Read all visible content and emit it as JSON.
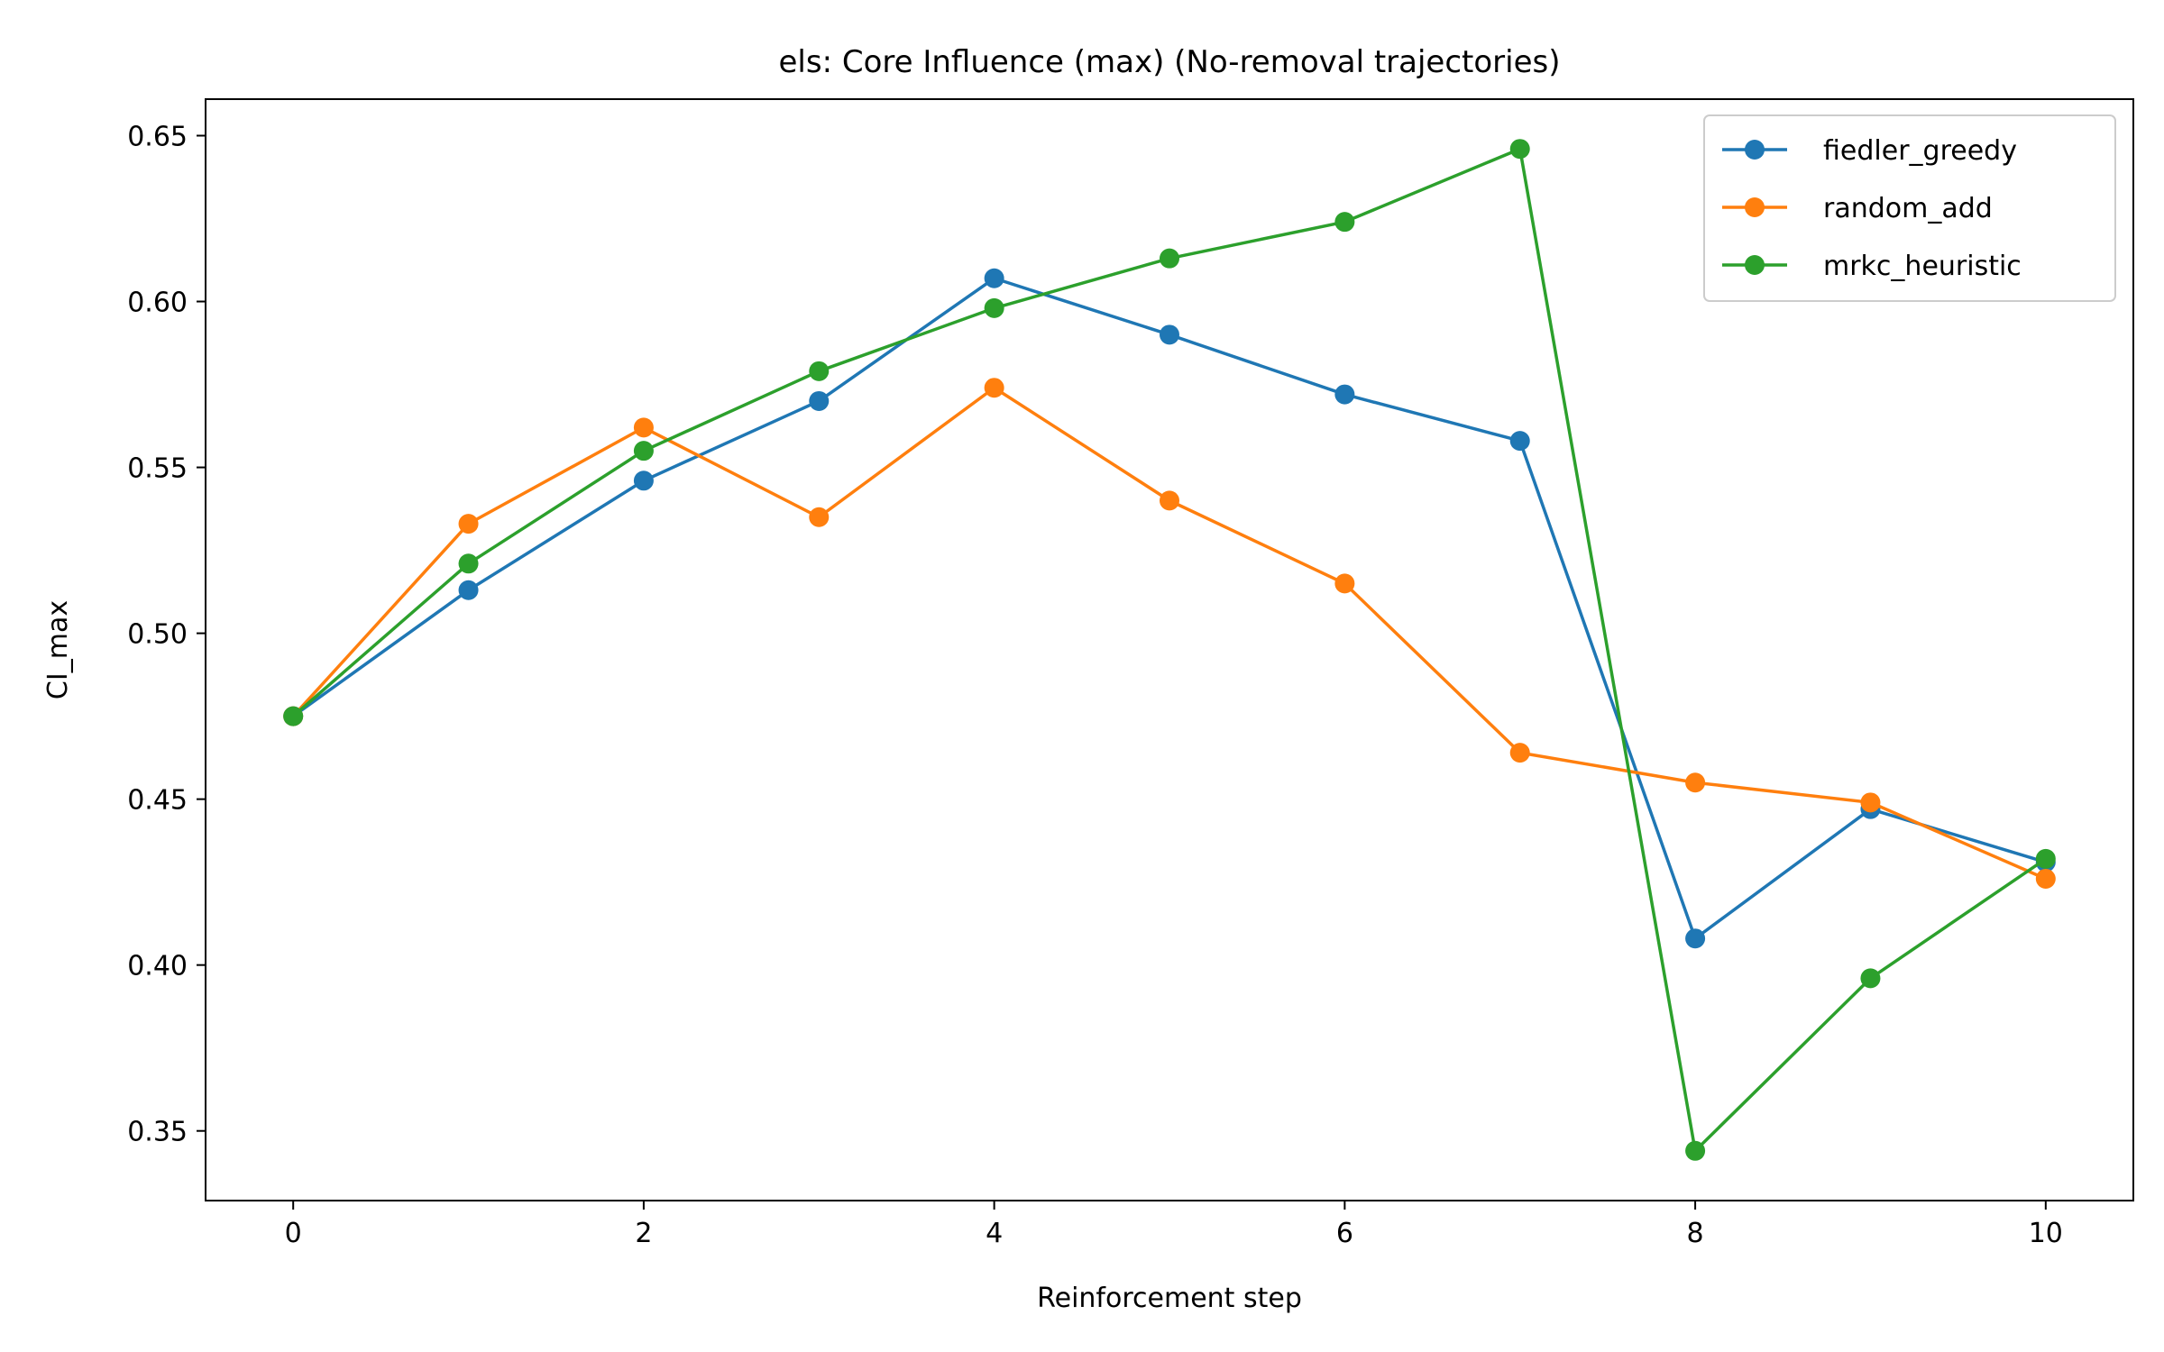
{
  "chart_data": {
    "type": "line",
    "title": "els: Core Influence (max) (No-removal trajectories)",
    "xlabel": "Reinforcement step",
    "ylabel": "CI_max",
    "x": [
      0,
      1,
      2,
      3,
      4,
      5,
      6,
      7,
      8,
      9,
      10
    ],
    "xlim": [
      -0.5,
      10.5
    ],
    "ylim": [
      0.329,
      0.661
    ],
    "xticks": [
      0,
      2,
      4,
      6,
      8,
      10
    ],
    "yticks": [
      0.35,
      0.4,
      0.45,
      0.5,
      0.55,
      0.6,
      0.65
    ],
    "xtick_labels": [
      "0",
      "2",
      "4",
      "6",
      "8",
      "10"
    ],
    "ytick_labels": [
      "0.35",
      "0.40",
      "0.45",
      "0.50",
      "0.55",
      "0.60",
      "0.65"
    ],
    "grid": false,
    "legend_position": "top-right",
    "series": [
      {
        "name": "fiedler_greedy",
        "color": "#1f77b4",
        "values": [
          0.475,
          0.513,
          0.546,
          0.57,
          0.607,
          0.59,
          0.572,
          0.558,
          0.408,
          0.447,
          0.431
        ]
      },
      {
        "name": "random_add",
        "color": "#ff7f0e",
        "values": [
          0.475,
          0.533,
          0.562,
          0.535,
          0.574,
          0.54,
          0.515,
          0.464,
          0.455,
          0.449,
          0.426
        ]
      },
      {
        "name": "mrkc_heuristic",
        "color": "#2ca02c",
        "values": [
          0.475,
          0.521,
          0.555,
          0.579,
          0.598,
          0.613,
          0.624,
          0.646,
          0.344,
          0.396,
          0.432
        ]
      }
    ]
  }
}
